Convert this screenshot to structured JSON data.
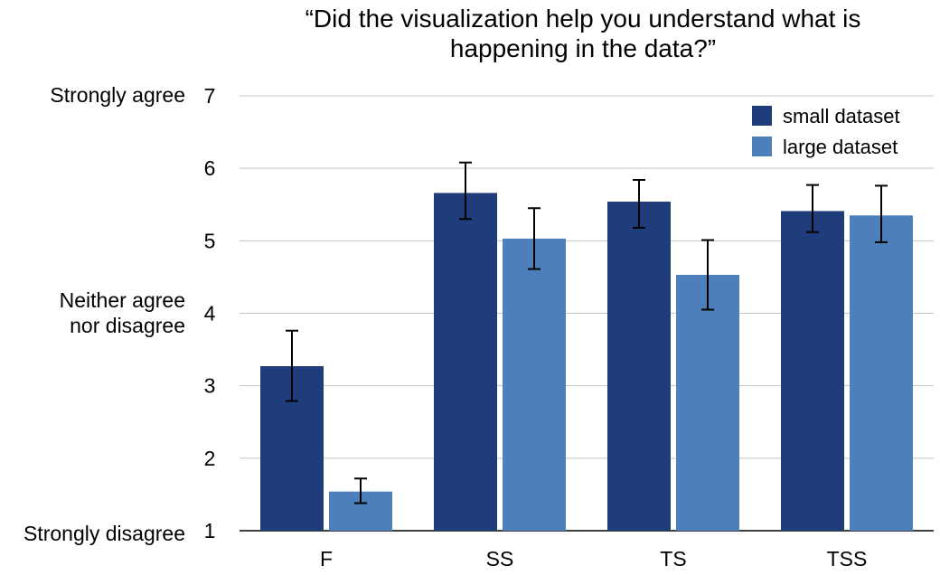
{
  "chart_data": {
    "type": "bar",
    "title_lines": [
      "“Did the visualization help you understand what is",
      "happening in the data?”"
    ],
    "categories": [
      "F",
      "SS",
      "TS",
      "TSS"
    ],
    "series": [
      {
        "name": "small dataset",
        "color": "#1f3d7a",
        "values": [
          3.27,
          5.66,
          5.54,
          5.41
        ],
        "error_low": [
          2.79,
          5.3,
          5.18,
          5.12
        ],
        "error_high": [
          3.76,
          6.08,
          5.84,
          5.77
        ]
      },
      {
        "name": "large dataset",
        "color": "#4d7fbb",
        "values": [
          1.54,
          5.03,
          4.53,
          5.35
        ],
        "error_low": [
          1.38,
          4.61,
          4.05,
          4.98
        ],
        "error_high": [
          1.72,
          5.45,
          5.01,
          5.76
        ]
      }
    ],
    "yticks": [
      1,
      2,
      3,
      4,
      5,
      6,
      7
    ],
    "ylim": [
      1,
      7
    ],
    "grid": true,
    "legend_position": "top-right",
    "ylabels": {
      "strongly_agree": "Strongly agree",
      "neutral_line1": "Neither agree",
      "neutral_line2": "nor disagree",
      "strongly_disagree": "Strongly disagree"
    }
  }
}
